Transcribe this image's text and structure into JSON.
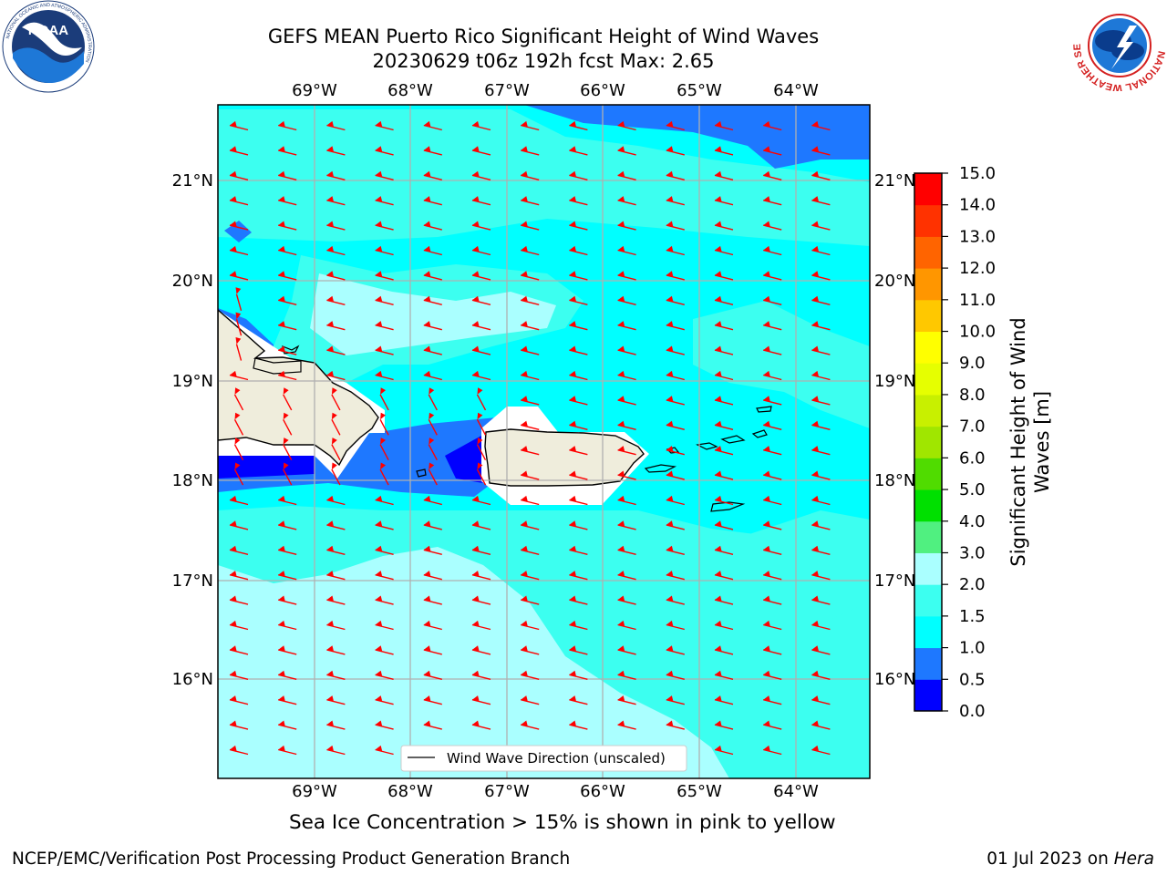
{
  "title": {
    "line1": "GEFS MEAN Puerto Rico Significant Height of Wind Waves",
    "line2": "20230629 t06z 192h fcst   Max: 2.65"
  },
  "axes": {
    "lon_ticks": [
      "69°W",
      "68°W",
      "67°W",
      "66°W",
      "65°W",
      "64°W"
    ],
    "lat_ticks": [
      "21°N",
      "20°N",
      "19°N",
      "18°N",
      "17°N",
      "16°N"
    ]
  },
  "legend": {
    "label": "Wind Wave Direction (unscaled)"
  },
  "colorbar": {
    "label_line1": "Significant Height of Wind",
    "label_line2": "Waves [m]",
    "ticks": [
      "0.0",
      "0.5",
      "1.0",
      "1.5",
      "2.0",
      "3.0",
      "4.0",
      "5.0",
      "6.0",
      "7.0",
      "8.0",
      "9.0",
      "10.0",
      "11.0",
      "12.0",
      "13.0",
      "14.0",
      "15.0"
    ],
    "colors": [
      "#0000ff",
      "#1e78ff",
      "#00ffff",
      "#3cfff0",
      "#aaffff",
      "#50f080",
      "#00e000",
      "#50dc00",
      "#a0e600",
      "#c8f000",
      "#e6ff00",
      "#ffff00",
      "#ffc800",
      "#ff9600",
      "#ff6400",
      "#ff3200",
      "#ff0000"
    ]
  },
  "footer": {
    "sea_ice_note": "Sea Ice Concentration > 15% is shown in pink to yellow",
    "branch": "NCEP/EMC/Verification Post Processing Product Generation Branch",
    "date": "01 Jul 2023 on",
    "host": "Hera"
  },
  "logos": {
    "left": {
      "name": "NOAA",
      "ring_text": "NATIONAL OCEANIC AND ATMOSPHERIC ADMINISTRATION",
      "bottom_text": "U.S. DEPARTMENT OF COMMERCE"
    },
    "right": {
      "ring_text": "NATIONAL WEATHER SERVICE"
    }
  },
  "map_colors": {
    "ocean": "#00ffff",
    "swell_mid": "#3cfff0",
    "swell_high": "#aaffff",
    "low": "#1e78ff",
    "lowest": "#0000ff",
    "land": "#efeddc",
    "masked": "#ffffff",
    "arrow": "#ff0000",
    "grid": "#b0b0b0"
  }
}
